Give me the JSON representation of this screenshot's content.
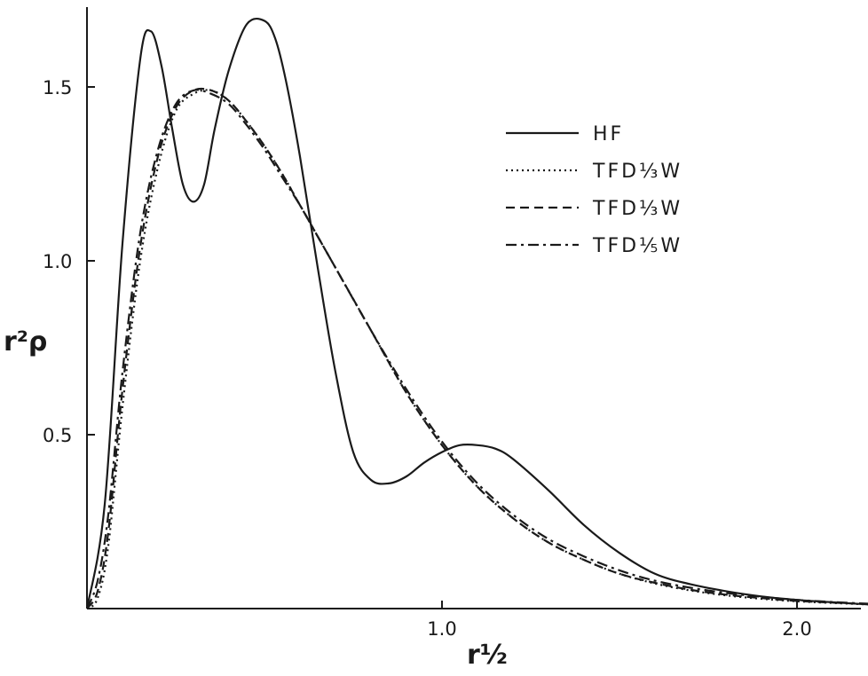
{
  "chart_data": {
    "type": "line",
    "title": "",
    "xlabel": "r½",
    "ylabel": "r²ρ",
    "xlim": [
      0,
      2.2
    ],
    "ylim": [
      0,
      1.75
    ],
    "x_ticks": [
      {
        "value": 1.0,
        "label": "1.0"
      },
      {
        "value": 2.0,
        "label": "2.0"
      }
    ],
    "y_ticks": [
      {
        "value": 0.5,
        "label": "0.5"
      },
      {
        "value": 1.0,
        "label": "1.0"
      },
      {
        "value": 1.5,
        "label": "1.5"
      }
    ],
    "grid": false,
    "legend_position": "top-right",
    "series": [
      {
        "name": "HF",
        "style": "solid",
        "x": [
          0,
          0.05,
          0.1,
          0.15,
          0.18,
          0.21,
          0.24,
          0.27,
          0.3,
          0.33,
          0.36,
          0.4,
          0.45,
          0.5,
          0.53,
          0.56,
          0.6,
          0.65,
          0.7,
          0.75,
          0.8,
          0.85,
          0.9,
          0.95,
          1.0,
          1.05,
          1.1,
          1.15,
          1.2,
          1.3,
          1.4,
          1.5,
          1.6,
          1.7,
          1.8,
          1.9,
          2.0,
          2.1,
          2.2
        ],
        "y": [
          0,
          0.3,
          1.05,
          1.58,
          1.66,
          1.56,
          1.38,
          1.22,
          1.17,
          1.22,
          1.38,
          1.55,
          1.68,
          1.69,
          1.64,
          1.52,
          1.3,
          0.98,
          0.68,
          0.45,
          0.37,
          0.36,
          0.38,
          0.42,
          0.45,
          0.47,
          0.47,
          0.46,
          0.43,
          0.34,
          0.24,
          0.16,
          0.1,
          0.07,
          0.05,
          0.035,
          0.025,
          0.018,
          0.012
        ]
      },
      {
        "name": "TFD⅓W",
        "style": "dotted",
        "x": [
          0,
          0.03,
          0.06,
          0.1,
          0.15,
          0.2,
          0.25,
          0.3,
          0.35,
          0.4,
          0.45,
          0.5,
          0.55,
          0.6,
          0.65,
          0.7,
          0.8,
          0.9,
          1.0,
          1.1,
          1.2,
          1.3,
          1.4,
          1.5,
          1.6,
          1.7,
          1.8,
          1.9,
          2.0,
          2.1,
          2.2
        ],
        "y": [
          0,
          0.03,
          0.18,
          0.58,
          1.0,
          1.27,
          1.43,
          1.48,
          1.49,
          1.46,
          1.4,
          1.33,
          1.25,
          1.16,
          1.07,
          0.98,
          0.8,
          0.62,
          0.47,
          0.35,
          0.26,
          0.19,
          0.14,
          0.1,
          0.072,
          0.052,
          0.038,
          0.028,
          0.021,
          0.016,
          0.012
        ]
      },
      {
        "name": "TFD⅓W",
        "style": "dashed",
        "x": [
          0,
          0.03,
          0.06,
          0.1,
          0.15,
          0.2,
          0.25,
          0.3,
          0.35,
          0.4,
          0.45,
          0.5,
          0.55,
          0.6,
          0.65,
          0.7,
          0.8,
          0.9,
          1.0,
          1.1,
          1.2,
          1.3,
          1.4,
          1.5,
          1.6,
          1.7,
          1.8,
          1.9,
          2.0,
          2.1,
          2.2
        ],
        "y": [
          0,
          0.05,
          0.22,
          0.63,
          1.04,
          1.3,
          1.44,
          1.49,
          1.49,
          1.46,
          1.4,
          1.33,
          1.25,
          1.16,
          1.07,
          0.98,
          0.8,
          0.62,
          0.47,
          0.35,
          0.26,
          0.19,
          0.14,
          0.1,
          0.074,
          0.054,
          0.04,
          0.03,
          0.022,
          0.017,
          0.013
        ]
      },
      {
        "name": "TFD⅕W",
        "style": "dashdot",
        "x": [
          0,
          0.03,
          0.06,
          0.1,
          0.15,
          0.2,
          0.25,
          0.3,
          0.35,
          0.4,
          0.45,
          0.5,
          0.55,
          0.6,
          0.65,
          0.7,
          0.8,
          0.9,
          1.0,
          1.1,
          1.2,
          1.3,
          1.4,
          1.5,
          1.6,
          1.7,
          1.8,
          1.9,
          2.0,
          2.1,
          2.2
        ],
        "y": [
          0,
          0.08,
          0.27,
          0.68,
          1.08,
          1.32,
          1.45,
          1.49,
          1.48,
          1.45,
          1.39,
          1.32,
          1.24,
          1.16,
          1.07,
          0.98,
          0.8,
          0.63,
          0.48,
          0.36,
          0.27,
          0.2,
          0.15,
          0.11,
          0.08,
          0.06,
          0.045,
          0.034,
          0.025,
          0.019,
          0.014
        ]
      }
    ]
  }
}
